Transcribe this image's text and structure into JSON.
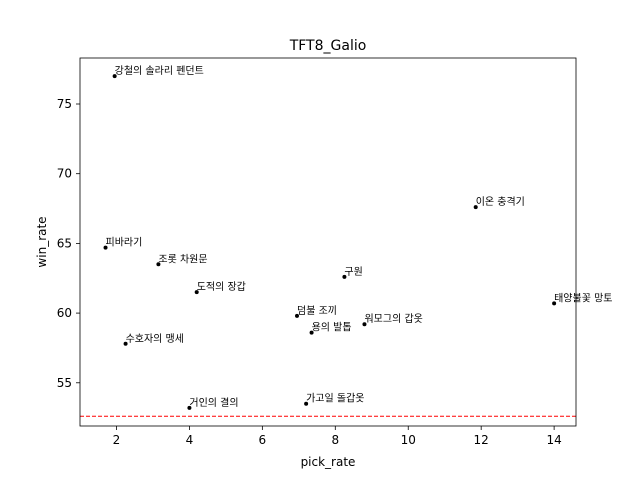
{
  "chart_data": {
    "type": "scatter",
    "title": "TFT8_Galio",
    "xlabel": "pick_rate",
    "ylabel": "win_rate",
    "xlim": [
      1.0,
      14.6
    ],
    "ylim": [
      51.9,
      78.3
    ],
    "xticks": [
      2,
      4,
      6,
      8,
      10,
      12,
      14
    ],
    "yticks": [
      55,
      60,
      65,
      70,
      75
    ],
    "grid": false,
    "reference_line": {
      "axis": "y",
      "value": 52.6,
      "color": "#ff0000",
      "style": "dashed"
    },
    "point_color": "#000000",
    "points": [
      {
        "label": "강철의 솔라리 펜던트",
        "x": 1.95,
        "y": 77.0
      },
      {
        "label": "이온 충격기",
        "x": 11.85,
        "y": 67.6
      },
      {
        "label": "피바라기",
        "x": 1.7,
        "y": 64.7
      },
      {
        "label": "조롯 차원문",
        "x": 3.15,
        "y": 63.5
      },
      {
        "label": "구원",
        "x": 8.25,
        "y": 62.6
      },
      {
        "label": "도적의 장갑",
        "x": 4.2,
        "y": 61.5
      },
      {
        "label": "태양불꽃 망토",
        "x": 14.0,
        "y": 60.7
      },
      {
        "label": "덤불 조끼",
        "x": 6.95,
        "y": 59.8
      },
      {
        "label": "워모그의 갑옷",
        "x": 8.8,
        "y": 59.2
      },
      {
        "label": "용의 발톱",
        "x": 7.35,
        "y": 58.6
      },
      {
        "label": "수호자의 맹세",
        "x": 2.25,
        "y": 57.8
      },
      {
        "label": "가고일 돌갑옷",
        "x": 7.2,
        "y": 53.5
      },
      {
        "label": "거인의 결의",
        "x": 4.0,
        "y": 53.2
      }
    ]
  }
}
